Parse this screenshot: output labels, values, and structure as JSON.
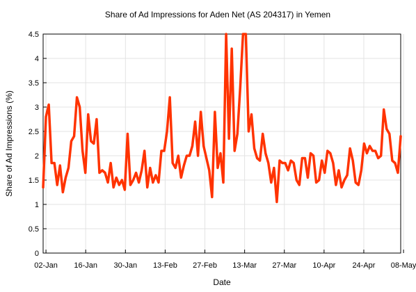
{
  "chart_data": {
    "type": "line",
    "title": "Share of Ad Impressions for Aden Net (AS 204317) in Yemen",
    "xlabel": "Date",
    "ylabel": "Share of Ad Impressions (%)",
    "ylim": [
      0,
      4.5
    ],
    "yticks": [
      "0",
      "0.5",
      "1",
      "1.5",
      "2",
      "2.5",
      "3",
      "3.5",
      "4",
      "4.5"
    ],
    "xticks": [
      "02-Jan",
      "16-Jan",
      "30-Jan",
      "13-Feb",
      "27-Feb",
      "13-Mar",
      "27-Mar",
      "10-Apr",
      "24-Apr",
      "08-May"
    ],
    "grid": true,
    "line_color": "#ff3300",
    "series": [
      {
        "x_start": "2017-01-01",
        "x_end": "2017-05-07",
        "values": [
          1.35,
          2.8,
          3.05,
          1.85,
          1.85,
          1.4,
          1.8,
          1.25,
          1.55,
          1.75,
          2.3,
          2.4,
          3.2,
          3.0,
          2.1,
          1.65,
          2.85,
          2.3,
          2.25,
          2.75,
          1.65,
          1.7,
          1.65,
          1.45,
          1.85,
          1.35,
          1.55,
          1.4,
          1.5,
          1.3,
          2.45,
          1.4,
          1.5,
          1.65,
          1.45,
          1.7,
          2.1,
          1.35,
          1.75,
          1.45,
          1.6,
          1.45,
          2.1,
          2.1,
          2.5,
          3.2,
          1.85,
          1.75,
          2.0,
          1.55,
          1.8,
          2.0,
          2.0,
          2.2,
          2.7,
          2.0,
          2.9,
          2.2,
          1.95,
          1.7,
          1.15,
          2.9,
          1.75,
          2.05,
          1.45,
          4.5,
          2.35,
          4.2,
          2.1,
          2.45,
          3.4,
          4.5,
          4.5,
          2.5,
          2.85,
          2.15,
          1.95,
          1.9,
          2.45,
          2.05,
          1.85,
          1.45,
          1.75,
          1.05,
          1.9,
          1.85,
          1.85,
          1.7,
          1.9,
          1.85,
          1.5,
          1.4,
          1.95,
          1.95,
          1.55,
          2.05,
          2.0,
          1.45,
          1.5,
          1.9,
          1.65,
          2.1,
          2.05,
          1.85,
          1.4,
          1.7,
          1.35,
          1.5,
          1.6,
          2.15,
          1.9,
          1.45,
          1.4,
          1.7,
          2.25,
          2.05,
          2.2,
          2.1,
          2.1,
          1.95,
          2.0,
          2.95,
          2.55,
          2.45,
          1.9,
          1.85,
          1.65,
          2.4
        ]
      }
    ]
  }
}
